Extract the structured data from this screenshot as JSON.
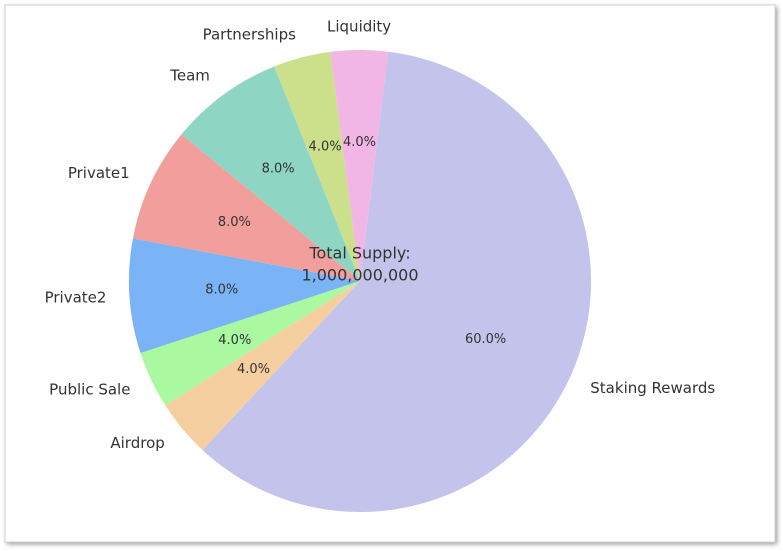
{
  "chart_data": {
    "type": "pie",
    "center_text": [
      "Total Supply:",
      "1,000,000,000"
    ],
    "categories": [
      "Staking Rewards",
      "Liquidity",
      "Partnerships",
      "Team",
      "Private1",
      "Private2",
      "Public Sale",
      "Airdrop"
    ],
    "values": [
      60,
      4,
      4,
      8,
      8,
      8,
      4,
      4
    ],
    "value_labels": [
      "60.0%",
      "4.0%",
      "4.0%",
      "8.0%",
      "8.0%",
      "8.0%",
      "4.0%",
      "4.0%"
    ],
    "colors": [
      "#c3c3ec",
      "#f1b6e6",
      "#cce08c",
      "#8fd5c4",
      "#f19e9c",
      "#7bb3f7",
      "#aaf8a0",
      "#f6cfa0"
    ]
  }
}
